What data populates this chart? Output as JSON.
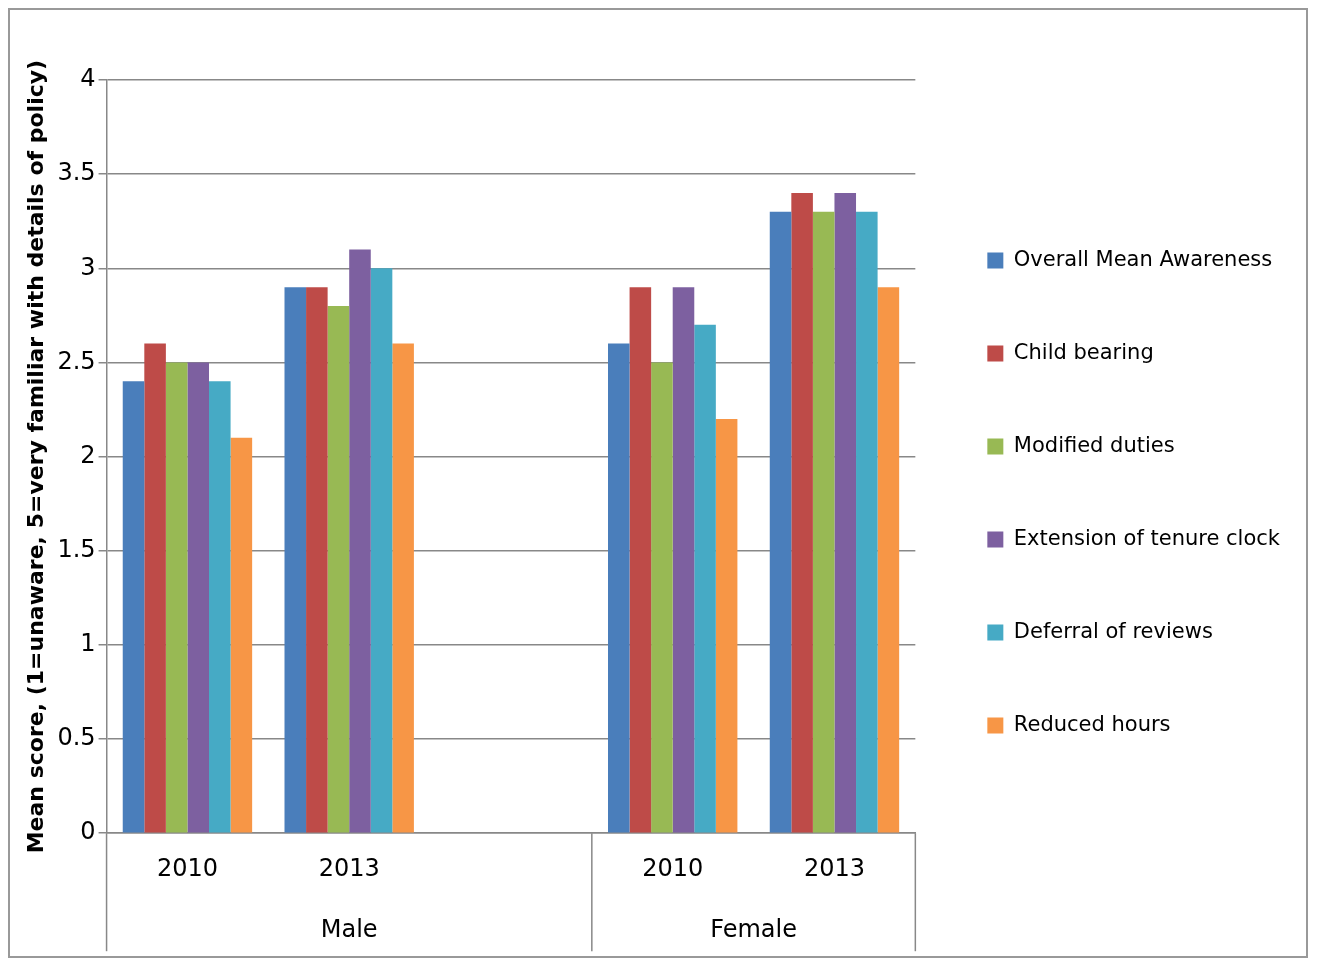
{
  "chart_data": {
    "type": "bar",
    "ylabel": "Mean score, (1=unaware, 5=very familiar with details of policy)",
    "categories": [
      "2010",
      "2013",
      null,
      "2010",
      "2013"
    ],
    "series": [
      {
        "name": "Overall Mean Awareness",
        "color": "#4a7ebb",
        "values": [
          2.4,
          2.9,
          null,
          2.6,
          3.3
        ]
      },
      {
        "name": "Child bearing",
        "color": "#be4b48",
        "values": [
          2.6,
          2.9,
          null,
          2.9,
          3.4
        ]
      },
      {
        "name": "Modified duties",
        "color": "#98b954",
        "values": [
          2.5,
          2.8,
          null,
          2.5,
          3.3
        ]
      },
      {
        "name": "Extension of tenure clock",
        "color": "#7d60a0",
        "values": [
          2.5,
          3.1,
          null,
          2.9,
          3.4
        ]
      },
      {
        "name": "Deferral of reviews",
        "color": "#46aac5",
        "values": [
          2.4,
          3.0,
          null,
          2.7,
          3.3
        ]
      },
      {
        "name": "Reduced hours",
        "color": "#f79646",
        "values": [
          2.1,
          2.6,
          null,
          2.2,
          2.9
        ]
      }
    ],
    "annotations": [
      "Male",
      "Female"
    ],
    "ylim": [
      0,
      4
    ],
    "yticks": [
      0,
      0.5,
      1,
      1.5,
      2,
      2.5,
      3,
      3.5,
      4
    ],
    "grid": "y",
    "legend": "right"
  }
}
